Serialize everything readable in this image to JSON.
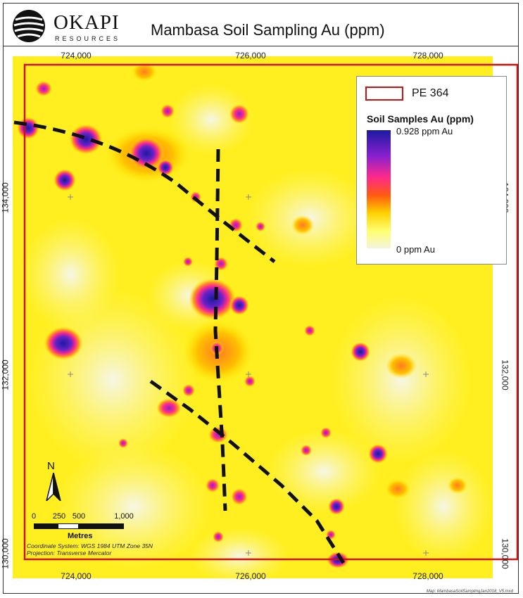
{
  "logo": {
    "name": "OKAPI",
    "sub": "RESOURCES"
  },
  "title": "Mambasa Soil Sampling Au (ppm)",
  "axes": {
    "x_ticks": [
      "724,000",
      "726,000",
      "728,000"
    ],
    "y_ticks": [
      "134,000",
      "132,000",
      "130,000"
    ]
  },
  "legend": {
    "boundary_label": "PE 364",
    "boundary_color": "#cc1111",
    "gradient_title": "Soil Samples Au (ppm)",
    "max_label": "0.928 ppm Au",
    "min_label": "0 ppm Au",
    "colors": [
      "#1a1aa0",
      "#8a20d0",
      "#ff2a8a",
      "#ff5a10",
      "#ffd000",
      "#ffff70",
      "#f4f4dc"
    ]
  },
  "north": {
    "label": "N"
  },
  "scale_bar": {
    "labels": [
      "0",
      "250",
      "500",
      "1,000"
    ],
    "units": "Metres"
  },
  "projection": {
    "coord_system": "Coordinate System: WGS 1984 UTM Zone 35N",
    "projection": "Projection: Transverse Mercator"
  },
  "map_name": "Map: MambasaSoilSamplingJan2018_V5.mxd"
}
